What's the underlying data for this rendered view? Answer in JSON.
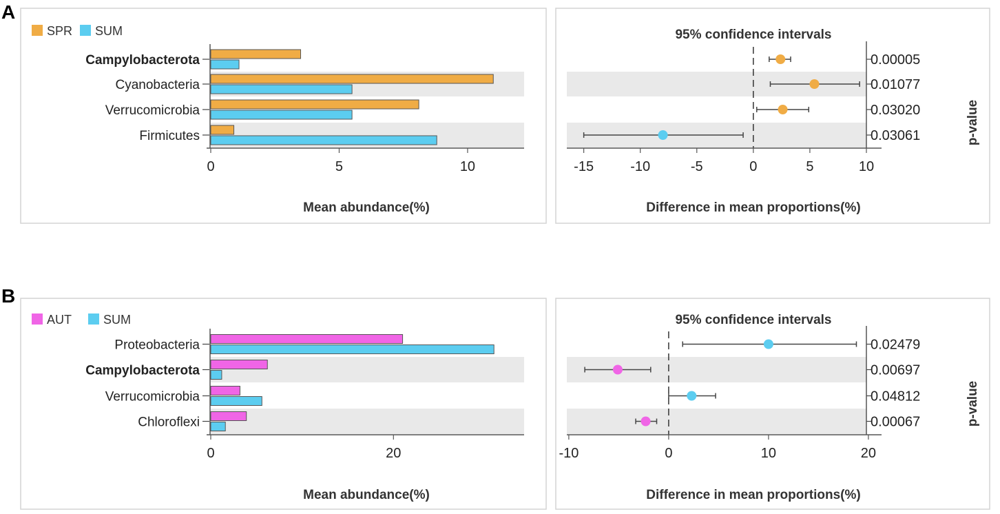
{
  "panels": [
    {
      "letter": "A",
      "legend": [
        {
          "name": "SPR",
          "color": "#F0AC45"
        },
        {
          "name": "SUM",
          "color": "#5CCDF0"
        }
      ],
      "bar_xlabel": "Mean abundance(%)",
      "ci_title": "95% confidence intervals",
      "ci_xlabel": "Difference in mean proportions(%)",
      "pvalue_label": "p-value"
    },
    {
      "letter": "B",
      "legend": [
        {
          "name": "AUT",
          "color": "#F065E6"
        },
        {
          "name": "SUM",
          "color": "#5CCDF0"
        }
      ],
      "bar_xlabel": "Mean abundance(%)",
      "ci_title": "95% confidence intervals",
      "ci_xlabel": "Difference in mean proportions(%)",
      "pvalue_label": "p-value"
    }
  ],
  "chart_data": [
    {
      "type": "bar",
      "panel": "A",
      "orientation": "horizontal",
      "categories": [
        "Campylobacterota",
        "Cyanobacteria",
        "Verrucomicrobia",
        "Firmicutes"
      ],
      "bold_categories": [
        "Campylobacterota"
      ],
      "series": [
        {
          "name": "SPR",
          "values": [
            3.5,
            11.0,
            8.1,
            0.9
          ]
        },
        {
          "name": "SUM",
          "values": [
            1.1,
            5.5,
            5.5,
            8.8
          ]
        }
      ],
      "xlabel": "Mean abundance(%)",
      "xlim": [
        0,
        12.2
      ],
      "xticks": [
        0,
        5,
        10
      ]
    },
    {
      "type": "scatter",
      "panel": "A",
      "subtype": "confidence-interval",
      "title": "95% confidence intervals",
      "categories": [
        "Campylobacterota",
        "Cyanobacteria",
        "Verrucomicrobia",
        "Firmicutes"
      ],
      "estimates": [
        2.4,
        5.4,
        2.6,
        -8.0
      ],
      "ci_low": [
        1.4,
        1.5,
        0.3,
        -15.0
      ],
      "ci_high": [
        3.3,
        9.4,
        4.9,
        -0.9
      ],
      "favors": [
        "SPR",
        "SPR",
        "SPR",
        "SUM"
      ],
      "p_values": [
        "0.00005",
        "0.01077",
        "0.03020",
        "0.03061"
      ],
      "xlabel": "Difference in mean proportions(%)",
      "ylabel": "p-value",
      "xlim": [
        -16.5,
        10
      ],
      "xticks": [
        -15,
        -10,
        -5,
        0,
        5,
        10
      ]
    },
    {
      "type": "bar",
      "panel": "B",
      "orientation": "horizontal",
      "categories": [
        "Proteobacteria",
        "Campylobacterota",
        "Verrucomicrobia",
        "Chloroflexi"
      ],
      "bold_categories": [
        "Campylobacterota"
      ],
      "series": [
        {
          "name": "AUT",
          "values": [
            21.0,
            6.2,
            3.2,
            3.9
          ]
        },
        {
          "name": "SUM",
          "values": [
            31.0,
            1.2,
            5.6,
            1.6
          ]
        }
      ],
      "xlabel": "Mean abundance(%)",
      "xlim": [
        0,
        34.3
      ],
      "xticks": [
        0,
        20
      ]
    },
    {
      "type": "scatter",
      "panel": "B",
      "subtype": "confidence-interval",
      "title": "95% confidence intervals",
      "categories": [
        "Proteobacteria",
        "Campylobacterota",
        "Verrucomicrobia",
        "Chloroflexi"
      ],
      "estimates": [
        10.0,
        -5.1,
        2.3,
        -2.3
      ],
      "ci_low": [
        1.4,
        -8.4,
        0.0,
        -3.3
      ],
      "ci_high": [
        18.8,
        -1.8,
        4.7,
        -1.2
      ],
      "favors": [
        "SUM",
        "AUT",
        "SUM",
        "AUT"
      ],
      "p_values": [
        "0.02479",
        "0.00697",
        "0.04812",
        "0.00067"
      ],
      "xlabel": "Difference in mean proportions(%)",
      "ylabel": "p-value",
      "xlim": [
        -10.2,
        19.8
      ],
      "xticks": [
        -10,
        0,
        10,
        20
      ]
    }
  ]
}
